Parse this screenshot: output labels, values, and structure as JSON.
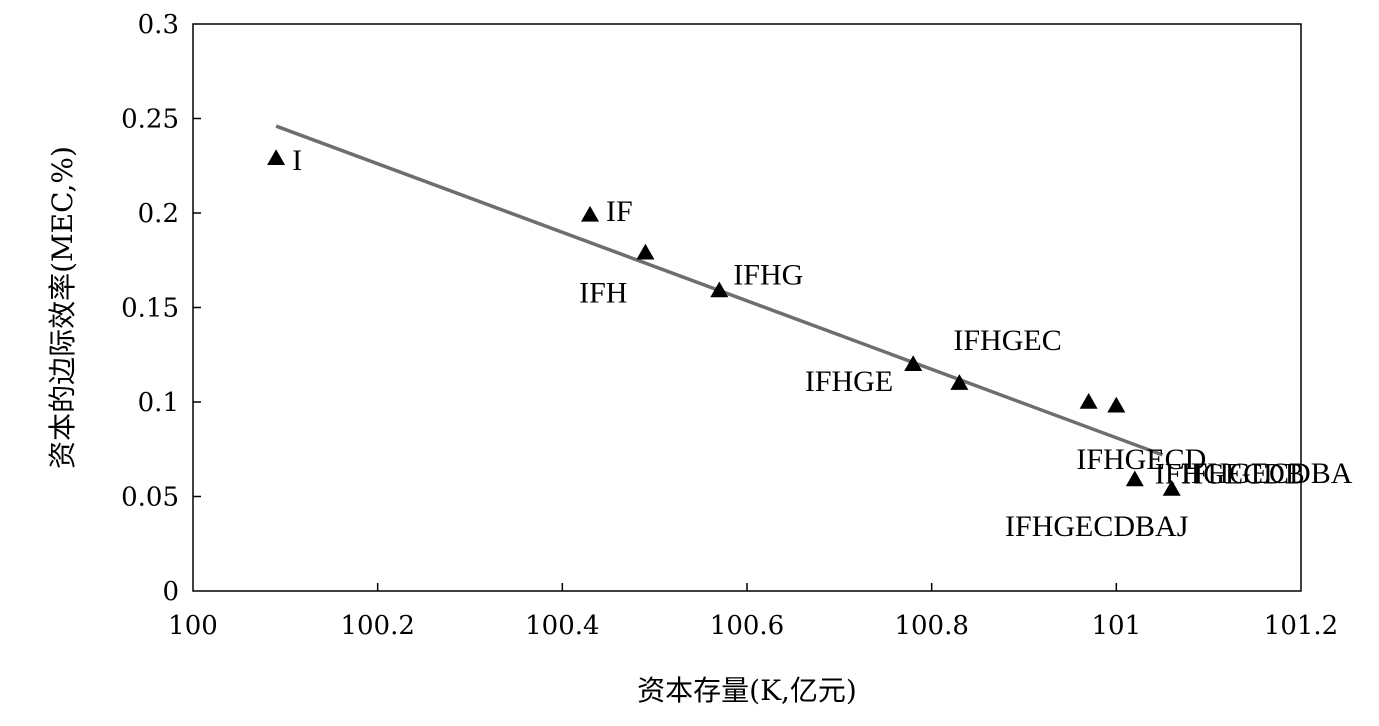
{
  "chart_data": {
    "type": "scatter",
    "xlabel": "资本存量(K,亿元)",
    "ylabel": "资本的边际效率(MEC,%)",
    "xlim": [
      100,
      101.2
    ],
    "ylim": [
      0,
      0.3
    ],
    "x_ticks": [
      "100",
      "100.2",
      "100.4",
      "100.6",
      "100.8",
      "101",
      "101.2"
    ],
    "x_tick_values": [
      100,
      100.2,
      100.4,
      100.6,
      100.8,
      101,
      101.2
    ],
    "y_ticks": [
      "0",
      "0.05",
      "0.1",
      "0.15",
      "0.2",
      "0.25",
      "0.3"
    ],
    "y_tick_values": [
      0,
      0.05,
      0.1,
      0.15,
      0.2,
      0.25,
      0.3
    ],
    "grid": false,
    "marker": "triangle",
    "marker_color": "#000000",
    "trendline_color": "#6e6e6e",
    "points": [
      {
        "label": "I",
        "x": 100.09,
        "y": 0.229
      },
      {
        "label": "IF",
        "x": 100.43,
        "y": 0.199
      },
      {
        "label": "IFH",
        "x": 100.49,
        "y": 0.179
      },
      {
        "label": "IFHG",
        "x": 100.57,
        "y": 0.159
      },
      {
        "label": "IFHGE",
        "x": 100.78,
        "y": 0.12
      },
      {
        "label": "IFHGEC",
        "x": 100.83,
        "y": 0.11
      },
      {
        "label": "",
        "x": 100.97,
        "y": 0.1
      },
      {
        "label": "IFHGECD",
        "x": 101.0,
        "y": 0.098
      },
      {
        "label": "IFHGECDB",
        "x": 101.02,
        "y": 0.059
      },
      {
        "label": "IFHGECDBA",
        "x": 101.06,
        "y": 0.054
      }
    ],
    "trendline": {
      "x": [
        100.09,
        101.05
      ],
      "y": [
        0.246,
        0.072
      ]
    }
  }
}
